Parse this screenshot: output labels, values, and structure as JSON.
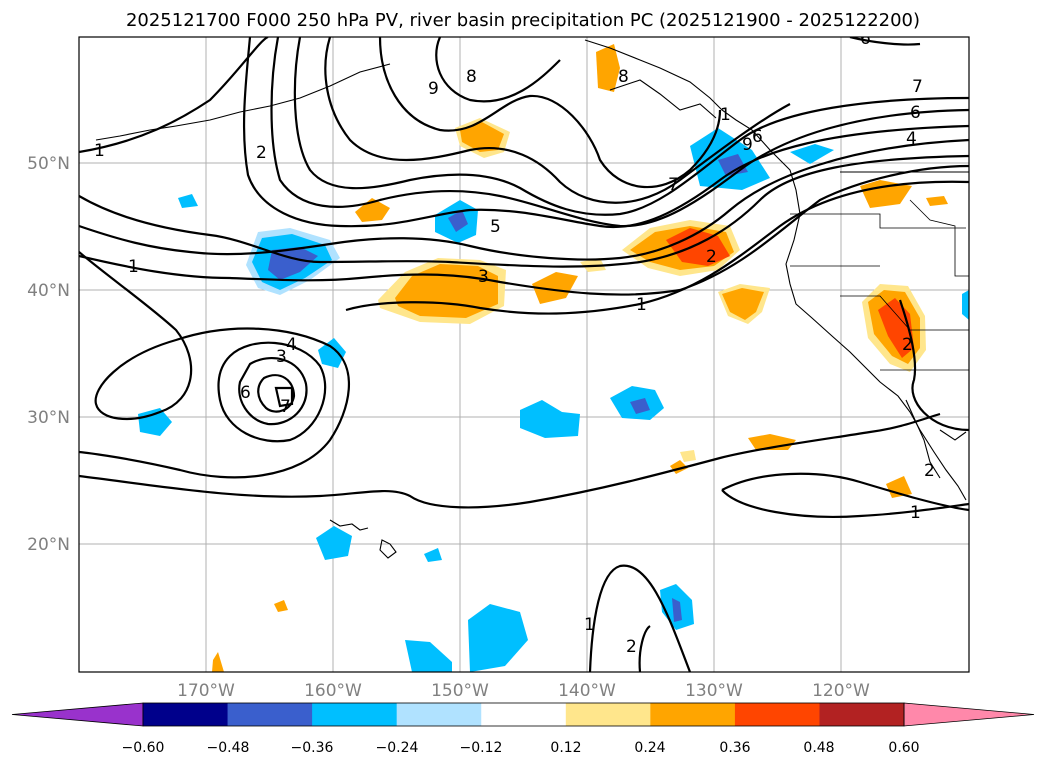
{
  "title": "2025121700 F000 250 hPa PV, river basin precipitation PC (2025121900 - 2025122200)",
  "axes": {
    "lon_ticks": [
      "170°W",
      "160°W",
      "150°W",
      "140°W",
      "130°W",
      "120°W"
    ],
    "lat_ticks": [
      "50°N",
      "40°N",
      "30°N",
      "20°N"
    ]
  },
  "colorbar": {
    "ticks": [
      "−0.60",
      "−0.48",
      "−0.36",
      "−0.24",
      "−0.12",
      "0.12",
      "0.24",
      "0.36",
      "0.48",
      "0.60"
    ],
    "bin_colors": [
      "#9932cc",
      "#00008b",
      "#3a5fcd",
      "#00bfff",
      "#b0e2ff",
      "#ffffff",
      "#ffe68c",
      "#ffa500",
      "#ff4500",
      "#b22222",
      "#ff88aa"
    ]
  },
  "contour_labels": [
    "1",
    "2",
    "3",
    "4",
    "5",
    "6",
    "7",
    "8",
    "9",
    "1",
    "2",
    "3",
    "6",
    "7",
    "1",
    "2",
    "4",
    "6",
    "7",
    "8",
    "1",
    "2",
    "1",
    "1",
    "2",
    "9",
    "6"
  ],
  "chart_data": {
    "type": "heatmap",
    "title": "2025121700 F000 250 hPa PV, river basin precipitation PC (2025121900 - 2025122200)",
    "variables": {
      "contours": "250 hPa potential vorticity (PVU)",
      "shading": "river basin precipitation principal component"
    },
    "lon_range": [
      -180,
      -110
    ],
    "lat_range": [
      10,
      60
    ],
    "shading_levels": [
      -0.6,
      -0.48,
      -0.36,
      -0.24,
      -0.12,
      0.12,
      0.24,
      0.36,
      0.48,
      0.6
    ],
    "pv_contour_levels": [
      1,
      2,
      3,
      4,
      5,
      6,
      7,
      8,
      9
    ]
  }
}
